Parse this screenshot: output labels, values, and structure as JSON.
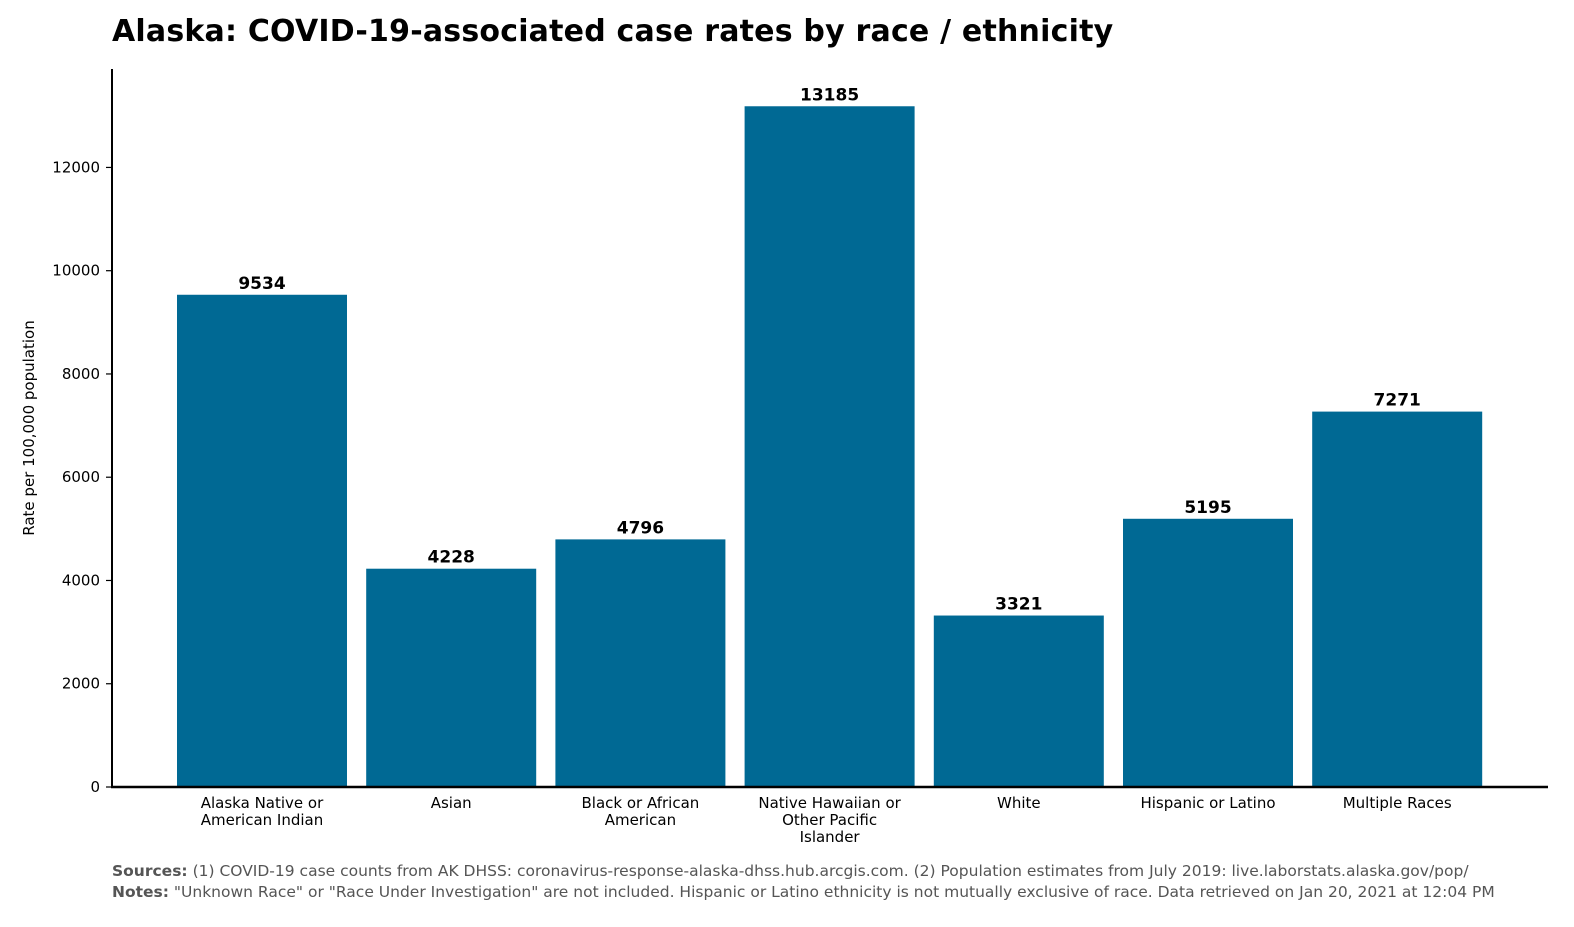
{
  "chart_data": {
    "type": "bar",
    "title": "Alaska: COVID-19-associated case rates by race / ethnicity",
    "xlabel": "",
    "ylabel": "Rate per 100,000 population",
    "categories": [
      "Alaska Native or American Indian",
      "Asian",
      "Black or African American",
      "Native Hawaiian or Other Pacific Islander",
      "White",
      "Hispanic or Latino",
      "Multiple Races"
    ],
    "category_lines": [
      [
        "Alaska Native or",
        "American Indian"
      ],
      [
        "Asian"
      ],
      [
        "Black or African",
        "American"
      ],
      [
        "Native Hawaiian or",
        "Other Pacific",
        "Islander"
      ],
      [
        "White"
      ],
      [
        "Hispanic or Latino"
      ],
      [
        "Multiple Races"
      ]
    ],
    "values": [
      9534,
      4228,
      4796,
      13185,
      3321,
      5195,
      7271
    ],
    "value_labels": [
      "9534",
      "4228",
      "4796",
      "13185",
      "3321",
      "5195",
      "7271"
    ],
    "ylim": [
      0,
      13850
    ],
    "yticks": [
      0,
      2000,
      4000,
      6000,
      8000,
      10000,
      12000
    ],
    "ytick_labels": [
      "0",
      "2000",
      "4000",
      "6000",
      "8000",
      "10000",
      "12000"
    ],
    "grid": false,
    "bar_color": "#006994"
  },
  "footer": {
    "sources_label": "Sources:",
    "sources_text": "(1) COVID-19 case counts from AK DHSS: coronavirus-response-alaska-dhss.hub.arcgis.com. (2) Population estimates from July 2019: live.laborstats.alaska.gov/pop/",
    "notes_label": "Notes:",
    "notes_text": "\"Unknown Race\" or \"Race Under Investigation\" are not included. Hispanic or Latino ethnicity is not mutually exclusive of race. Data retrieved on Jan 20, 2021 at 12:04 PM"
  }
}
